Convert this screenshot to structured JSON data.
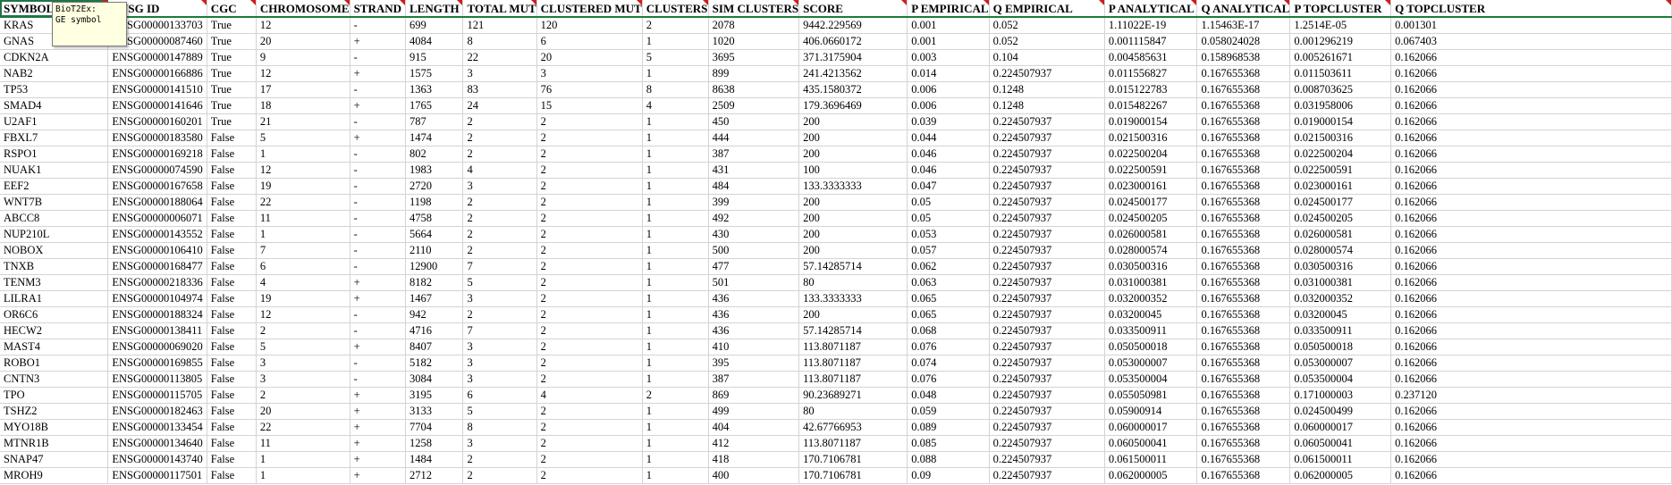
{
  "columns": [
    "SYMBOL",
    "ENSG ID",
    "CGC",
    "CHROMOSOME",
    "STRAND",
    "LENGTH",
    "TOTAL MUT",
    "CLUSTERED MUT",
    "CLUSTERS",
    "SIM CLUSTERS",
    "SCORE",
    "P EMPIRICAL",
    "Q EMPIRICAL",
    "P ANALYTICAL",
    "Q ANALYTICAL",
    "P TOPCLUSTER",
    "Q TOPCLUSTER"
  ],
  "comment": {
    "author": "BioT2Ex:",
    "text": "GE symbol"
  },
  "rows": [
    [
      "KRAS",
      "ENSG00000133703",
      "True",
      "12",
      "-",
      "699",
      "121",
      "120",
      "2",
      "2078",
      "9442.229569",
      "0.001",
      "0.052",
      "1.11022E-19",
      "1.15463E-17",
      "1.2514E-05",
      "0.001301"
    ],
    [
      "GNAS",
      "ENSG00000087460",
      "True",
      "20",
      "+",
      "4084",
      "8",
      "6",
      "1",
      "1020",
      "406.0660172",
      "0.001",
      "0.052",
      "0.001115847",
      "0.058024028",
      "0.001296219",
      "0.067403"
    ],
    [
      "CDKN2A",
      "ENSG00000147889",
      "True",
      "9",
      "-",
      "915",
      "22",
      "20",
      "5",
      "3695",
      "371.3175904",
      "0.003",
      "0.104",
      "0.004585631",
      "0.158968538",
      "0.005261671",
      "0.162066"
    ],
    [
      "NAB2",
      "ENSG00000166886",
      "True",
      "12",
      "+",
      "1575",
      "3",
      "3",
      "1",
      "899",
      "241.4213562",
      "0.014",
      "0.224507937",
      "0.011556827",
      "0.167655368",
      "0.011503611",
      "0.162066"
    ],
    [
      "TP53",
      "ENSG00000141510",
      "True",
      "17",
      "-",
      "1363",
      "83",
      "76",
      "8",
      "8638",
      "435.1580372",
      "0.006",
      "0.1248",
      "0.015122783",
      "0.167655368",
      "0.008703625",
      "0.162066"
    ],
    [
      "SMAD4",
      "ENSG00000141646",
      "True",
      "18",
      "+",
      "1765",
      "24",
      "15",
      "4",
      "2509",
      "179.3696469",
      "0.006",
      "0.1248",
      "0.015482267",
      "0.167655368",
      "0.031958006",
      "0.162066"
    ],
    [
      "U2AF1",
      "ENSG00000160201",
      "True",
      "21",
      "-",
      "787",
      "2",
      "2",
      "1",
      "450",
      "200",
      "0.039",
      "0.224507937",
      "0.019000154",
      "0.167655368",
      "0.019000154",
      "0.162066"
    ],
    [
      "FBXL7",
      "ENSG00000183580",
      "False",
      "5",
      "+",
      "1474",
      "2",
      "2",
      "1",
      "444",
      "200",
      "0.044",
      "0.224507937",
      "0.021500316",
      "0.167655368",
      "0.021500316",
      "0.162066"
    ],
    [
      "RSPO1",
      "ENSG00000169218",
      "False",
      "1",
      "-",
      "802",
      "2",
      "2",
      "1",
      "387",
      "200",
      "0.046",
      "0.224507937",
      "0.022500204",
      "0.167655368",
      "0.022500204",
      "0.162066"
    ],
    [
      "NUAK1",
      "ENSG00000074590",
      "False",
      "12",
      "-",
      "1983",
      "4",
      "2",
      "1",
      "431",
      "100",
      "0.046",
      "0.224507937",
      "0.022500591",
      "0.167655368",
      "0.022500591",
      "0.162066"
    ],
    [
      "EEF2",
      "ENSG00000167658",
      "False",
      "19",
      "-",
      "2720",
      "3",
      "2",
      "1",
      "484",
      "133.3333333",
      "0.047",
      "0.224507937",
      "0.023000161",
      "0.167655368",
      "0.023000161",
      "0.162066"
    ],
    [
      "WNT7B",
      "ENSG00000188064",
      "False",
      "22",
      "-",
      "1198",
      "2",
      "2",
      "1",
      "399",
      "200",
      "0.05",
      "0.224507937",
      "0.024500177",
      "0.167655368",
      "0.024500177",
      "0.162066"
    ],
    [
      "ABCC8",
      "ENSG00000006071",
      "False",
      "11",
      "-",
      "4758",
      "2",
      "2",
      "1",
      "492",
      "200",
      "0.05",
      "0.224507937",
      "0.024500205",
      "0.167655368",
      "0.024500205",
      "0.162066"
    ],
    [
      "NUP210L",
      "ENSG00000143552",
      "False",
      "1",
      "-",
      "5664",
      "2",
      "2",
      "1",
      "430",
      "200",
      "0.053",
      "0.224507937",
      "0.026000581",
      "0.167655368",
      "0.026000581",
      "0.162066"
    ],
    [
      "NOBOX",
      "ENSG00000106410",
      "False",
      "7",
      "-",
      "2110",
      "2",
      "2",
      "1",
      "500",
      "200",
      "0.057",
      "0.224507937",
      "0.028000574",
      "0.167655368",
      "0.028000574",
      "0.162066"
    ],
    [
      "TNXB",
      "ENSG00000168477",
      "False",
      "6",
      "-",
      "12900",
      "7",
      "2",
      "1",
      "477",
      "57.14285714",
      "0.062",
      "0.224507937",
      "0.030500316",
      "0.167655368",
      "0.030500316",
      "0.162066"
    ],
    [
      "TENM3",
      "ENSG00000218336",
      "False",
      "4",
      "+",
      "8182",
      "5",
      "2",
      "1",
      "501",
      "80",
      "0.063",
      "0.224507937",
      "0.031000381",
      "0.167655368",
      "0.031000381",
      "0.162066"
    ],
    [
      "LILRA1",
      "ENSG00000104974",
      "False",
      "19",
      "+",
      "1467",
      "3",
      "2",
      "1",
      "436",
      "133.3333333",
      "0.065",
      "0.224507937",
      "0.032000352",
      "0.167655368",
      "0.032000352",
      "0.162066"
    ],
    [
      "OR6C6",
      "ENSG00000188324",
      "False",
      "12",
      "-",
      "942",
      "2",
      "2",
      "1",
      "436",
      "200",
      "0.065",
      "0.224507937",
      "0.03200045",
      "0.167655368",
      "0.03200045",
      "0.162066"
    ],
    [
      "HECW2",
      "ENSG00000138411",
      "False",
      "2",
      "-",
      "4716",
      "7",
      "2",
      "1",
      "436",
      "57.14285714",
      "0.068",
      "0.224507937",
      "0.033500911",
      "0.167655368",
      "0.033500911",
      "0.162066"
    ],
    [
      "MAST4",
      "ENSG00000069020",
      "False",
      "5",
      "+",
      "8407",
      "3",
      "2",
      "1",
      "410",
      "113.8071187",
      "0.076",
      "0.224507937",
      "0.050500018",
      "0.167655368",
      "0.050500018",
      "0.162066"
    ],
    [
      "ROBO1",
      "ENSG00000169855",
      "False",
      "3",
      "-",
      "5182",
      "3",
      "2",
      "1",
      "395",
      "113.8071187",
      "0.074",
      "0.224507937",
      "0.053000007",
      "0.167655368",
      "0.053000007",
      "0.162066"
    ],
    [
      "CNTN3",
      "ENSG00000113805",
      "False",
      "3",
      "-",
      "3084",
      "3",
      "2",
      "1",
      "387",
      "113.8071187",
      "0.076",
      "0.224507937",
      "0.053500004",
      "0.167655368",
      "0.053500004",
      "0.162066"
    ],
    [
      "TPO",
      "ENSG00000115705",
      "False",
      "2",
      "+",
      "3195",
      "6",
      "4",
      "2",
      "869",
      "90.23689271",
      "0.048",
      "0.224507937",
      "0.055050981",
      "0.167655368",
      "0.171000003",
      "0.237120"
    ],
    [
      "TSHZ2",
      "ENSG00000182463",
      "False",
      "20",
      "+",
      "3133",
      "5",
      "2",
      "1",
      "499",
      "80",
      "0.059",
      "0.224507937",
      "0.05900914",
      "0.167655368",
      "0.024500499",
      "0.162066"
    ],
    [
      "MYO18B",
      "ENSG00000133454",
      "False",
      "22",
      "+",
      "7704",
      "8",
      "2",
      "1",
      "404",
      "42.67766953",
      "0.089",
      "0.224507937",
      "0.060000017",
      "0.167655368",
      "0.060000017",
      "0.162066"
    ],
    [
      "MTNR1B",
      "ENSG00000134640",
      "False",
      "11",
      "+",
      "1258",
      "3",
      "2",
      "1",
      "412",
      "113.8071187",
      "0.085",
      "0.224507937",
      "0.060500041",
      "0.167655368",
      "0.060500041",
      "0.162066"
    ],
    [
      "SNAP47",
      "ENSG00000143740",
      "False",
      "1",
      "+",
      "1484",
      "2",
      "2",
      "1",
      "418",
      "170.7106781",
      "0.088",
      "0.224507937",
      "0.061500011",
      "0.167655368",
      "0.061500011",
      "0.162066"
    ],
    [
      "MROH9",
      "ENSG00000117501",
      "False",
      "1",
      "+",
      "2712",
      "2",
      "2",
      "1",
      "400",
      "170.7106781",
      "0.09",
      "0.224507937",
      "0.062000005",
      "0.167655368",
      "0.062000005",
      "0.162066"
    ]
  ]
}
